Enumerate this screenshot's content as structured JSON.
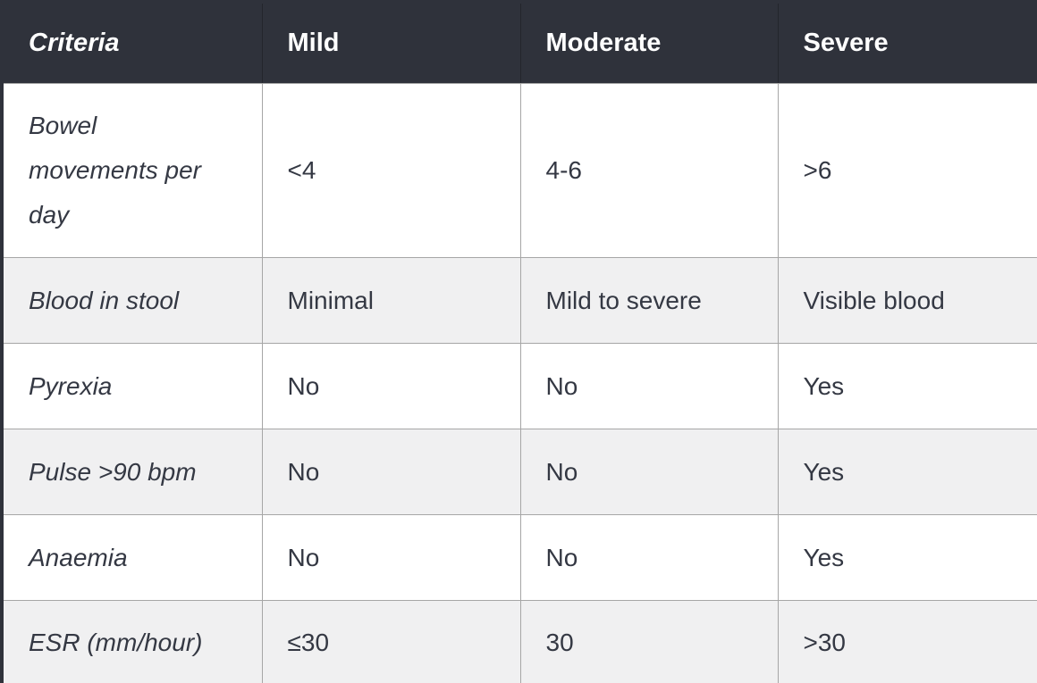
{
  "table": {
    "header": {
      "cells": [
        "Criteria",
        "Mild",
        "Moderate",
        "Severe"
      ]
    },
    "rows": [
      [
        "Bowel movements per day",
        "<4",
        "4-6",
        ">6"
      ],
      [
        "Blood in stool",
        "Minimal",
        "Mild to severe",
        "Visible blood"
      ],
      [
        "Pyrexia",
        "No",
        "No",
        "Yes"
      ],
      [
        "Pulse >90 bpm",
        "No",
        "No",
        "Yes"
      ],
      [
        "Anaemia",
        "No",
        "No",
        "Yes"
      ],
      [
        "ESR (mm/hour)",
        "≤30",
        "30",
        ">30"
      ]
    ]
  },
  "colors": {
    "header_bg": "#2f323b",
    "header_text": "#ffffff",
    "body_text": "#343843",
    "stripe_bg": "#f0f0f1",
    "grid_border": "#a6a6a6",
    "outer_border": "#2f323b"
  }
}
